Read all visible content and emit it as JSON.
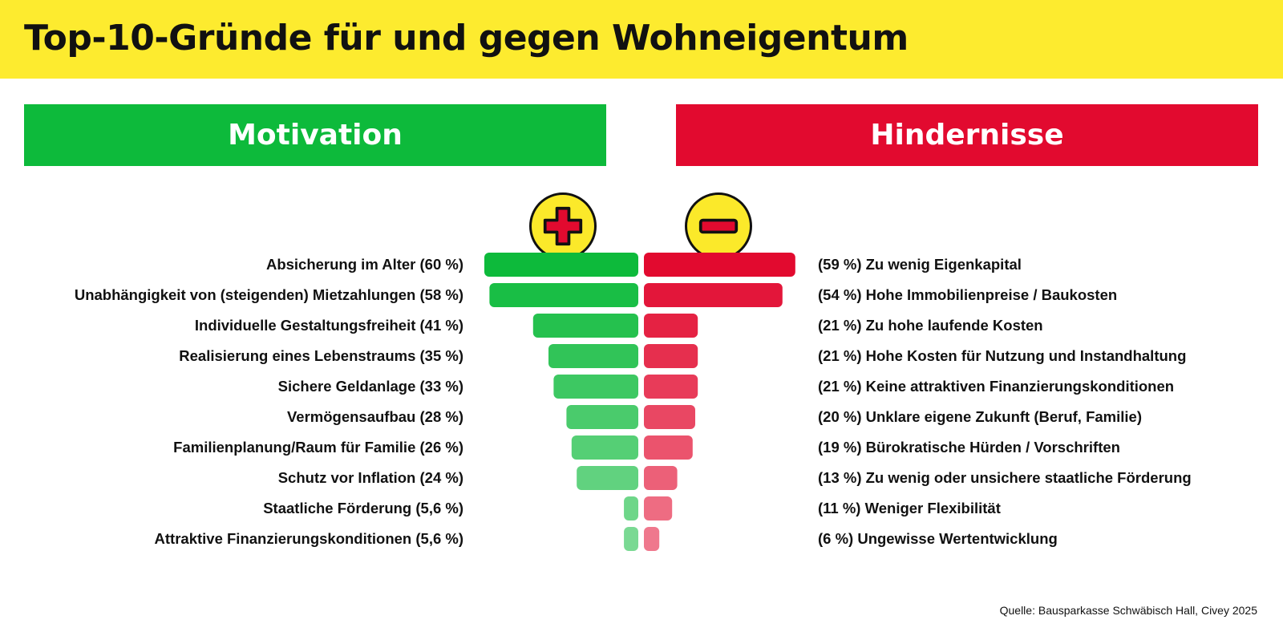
{
  "title": "Top-10-Gründe für und gegen Wohneigentum",
  "source": "Quelle: Bausparkasse Schwäbisch Hall, Civey 2025",
  "colors": {
    "header_bg": "#fdeb2f",
    "motivation": "#0dba3b",
    "hindernisse": "#e20a2f",
    "icon_bg": "#fbe92a"
  },
  "icons": {
    "plus": "plus-icon",
    "minus": "minus-icon"
  },
  "chart_data": {
    "type": "bar",
    "title": "Top-10-Gründe für und gegen Wohneigentum",
    "xlim": [
      0,
      60
    ],
    "orientation": "horizontal-diverging",
    "grid": false,
    "series": [
      {
        "name": "Motivation",
        "categories": [
          "Absicherung im Alter",
          "Unabhängigkeit von (steigenden) Mietzahlungen",
          "Individuelle Gestaltungsfreiheit",
          "Realisierung eines Lebenstraums",
          "Sichere Geldanlage",
          "Vermögensaufbau",
          "Familienplanung/Raum für Familie",
          "Schutz vor Inflation",
          "Staatliche Förderung",
          "Attraktive Finanzierungskonditionen"
        ],
        "values": [
          60,
          58,
          41,
          35,
          33,
          28,
          26,
          24,
          5.6,
          5.6
        ],
        "labels": [
          "Absicherung im Alter (60 %)",
          "Unabhängigkeit von (steigenden) Mietzahlungen (58 %)",
          "Individuelle Gestaltungsfreiheit (41 %)",
          "Realisierung eines Lebenstraums (35 %)",
          "Sichere Geldanlage (33 %)",
          "Vermögensaufbau (28 %)",
          "Familienplanung/Raum für Familie (26 %)",
          "Schutz vor Inflation (24 %)",
          "Staatliche Förderung (5,6 %)",
          "Attraktive Finanzierungskonditionen (5,6 %)"
        ]
      },
      {
        "name": "Hindernisse",
        "categories": [
          "Zu wenig Eigenkapital",
          "Hohe Immobilienpreise / Baukosten",
          "Zu hohe laufende Kosten",
          "Hohe Kosten für Nutzung und Instandhaltung",
          "Keine attraktiven Finanzierungskonditionen",
          "Unklare eigene Zukunft (Beruf, Familie)",
          "Bürokratische Hürden / Vorschriften",
          "Zu wenig oder unsichere staatliche Förderung",
          "Weniger Flexibilität",
          "Ungewisse Wertentwicklung"
        ],
        "values": [
          59,
          54,
          21,
          21,
          21,
          20,
          19,
          13,
          11,
          6
        ],
        "labels": [
          "(59 %) Zu wenig Eigenkapital",
          "(54 %) Hohe Immobilienpreise / Baukosten",
          "(21 %) Zu hohe laufende Kosten",
          "(21 %) Hohe Kosten für Nutzung und Instandhaltung",
          "(21 %) Keine attraktiven Finanzierungskonditionen",
          "(20 %) Unklare eigene Zukunft (Beruf, Familie)",
          "(19 %) Bürokratische Hürden / Vorschriften",
          "(13 %) Zu wenig oder unsichere staatliche Förderung",
          "(11 %) Weniger Flexibilität",
          "(6 %) Ungewisse Wertentwicklung"
        ]
      }
    ]
  }
}
